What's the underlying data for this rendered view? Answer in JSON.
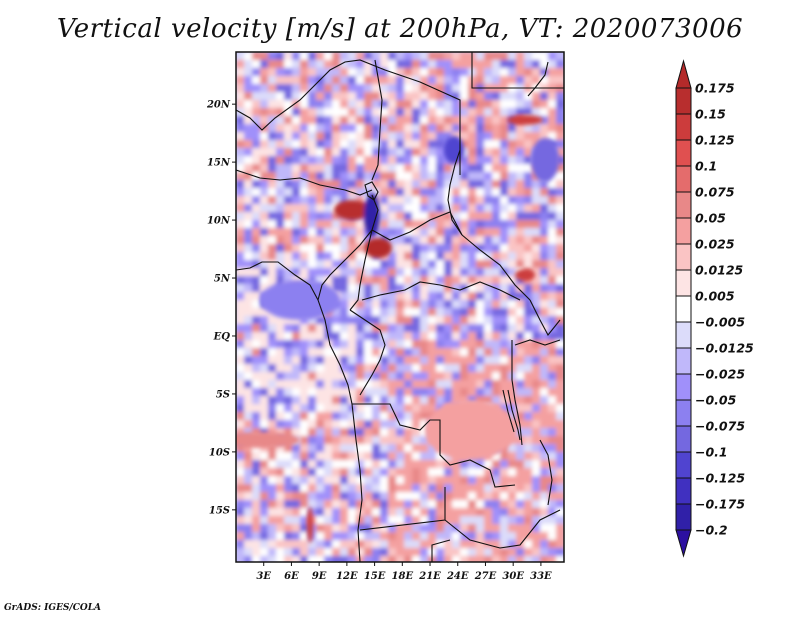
{
  "chart_data": {
    "type": "heatmap",
    "title": "Vertical velocity [m/s] at 200hPa, VT: 2020073006",
    "variable": "Vertical velocity",
    "units": "m/s",
    "level": "200hPa",
    "valid_time": "2020073006",
    "xlabel": "",
    "ylabel": "",
    "x_ticks": [
      "3E",
      "6E",
      "9E",
      "12E",
      "15E",
      "18E",
      "21E",
      "24E",
      "27E",
      "30E",
      "33E"
    ],
    "x_tick_values": [
      3,
      6,
      9,
      12,
      15,
      18,
      21,
      24,
      27,
      30,
      33
    ],
    "y_ticks": [
      "20N",
      "15N",
      "10N",
      "5N",
      "EQ",
      "5S",
      "10S",
      "15S"
    ],
    "y_tick_values": [
      20,
      15,
      10,
      5,
      0,
      -5,
      -10,
      -15
    ],
    "xlim": [
      0,
      35.5
    ],
    "ylim": [
      -19.5,
      24.5
    ],
    "colorbar": {
      "orientation": "vertical",
      "placement": "right",
      "extend": "both",
      "levels": [
        0.175,
        0.15,
        0.125,
        0.1,
        0.075,
        0.05,
        0.025,
        0.0125,
        0.005,
        -0.005,
        -0.0125,
        -0.025,
        -0.05,
        -0.075,
        -0.1,
        -0.125,
        -0.175,
        -0.2
      ],
      "labels": [
        "0.175",
        "0.15",
        "0.125",
        "0.1",
        "0.075",
        "0.05",
        "0.025",
        "0.0125",
        "0.005",
        "−0.005",
        "−0.0125",
        "−0.025",
        "−0.05",
        "−0.075",
        "−0.1",
        "−0.125",
        "−0.175",
        "−0.2"
      ],
      "colors": [
        "#b42a2a",
        "#b82e2e",
        "#cc3c3c",
        "#e05050",
        "#e46c6c",
        "#e88888",
        "#f4a0a0",
        "#fac4c4",
        "#fde4e4",
        "#ffffff",
        "#dcdcfa",
        "#c0b8fa",
        "#a090fa",
        "#8c80f0",
        "#7468e0",
        "#5044d0",
        "#4030c0",
        "#3020a8",
        "#2c10a0"
      ],
      "extend_max_color": "#b42a2a",
      "extend_min_color": "#2c10a0"
    },
    "features": {
      "strong_ascent_regions": [
        "around 12N-7N, 12E-16E (Lake Chad / Cameroon area)"
      ],
      "strong_descent_regions": [
        "around 13N-9N, 14E-15E",
        "eastern Sudan ~14N 32E"
      ],
      "map": "Central and southern-central Africa with country boundaries and coastlines"
    }
  },
  "credit": "GrADS: IGES/COLA"
}
